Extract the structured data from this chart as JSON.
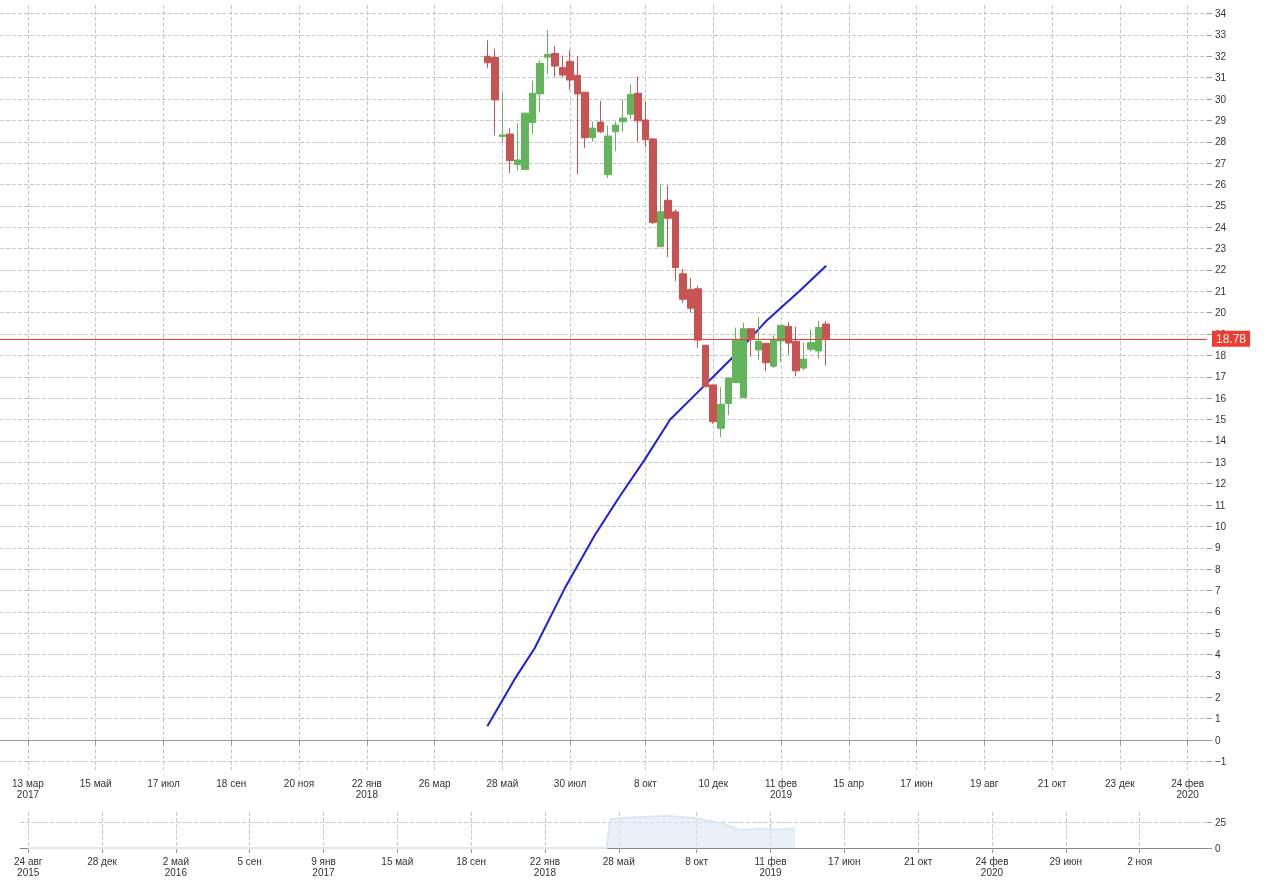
{
  "chart_data": [
    {
      "type": "candlestick",
      "colors": [
        "#c85353",
        "#c85353",
        "#62b55b",
        "#c85353",
        "#62b55b",
        "#62b55b",
        "#62b55b",
        "#62b55b",
        "#62b55b",
        "#c85353",
        "#c85353",
        "#c85353",
        "#c85353",
        "#c85353",
        "#62b55b",
        "#c85353",
        "#62b55b",
        "#62b55b",
        "#62b55b",
        "#62b55b",
        "#c85353",
        "#c85353",
        "#c85353",
        "#62b55b",
        "#c85353",
        "#c85353",
        "#c85353",
        "#c85353",
        "#c85353",
        "#c85353",
        "#c85353",
        "#62b55b",
        "#62b55b",
        "#62b55b",
        "#62b55b",
        "#c85353",
        "#62b55b",
        "#c85353",
        "#62b55b",
        "#62b55b",
        "#c85353",
        "#c85353",
        "#62b55b",
        "#62b55b",
        "#62b55b",
        "#c85353"
      ],
      "grid": true,
      "x": [
        "2018-05-14",
        "2018-05-21",
        "2018-05-28",
        "2018-06-04",
        "2018-06-11",
        "2018-06-18",
        "2018-06-25",
        "2018-07-02",
        "2018-07-09",
        "2018-07-16",
        "2018-07-23",
        "2018-07-30",
        "2018-08-06",
        "2018-08-13",
        "2018-08-20",
        "2018-08-27",
        "2018-09-03",
        "2018-09-10",
        "2018-09-17",
        "2018-09-24",
        "2018-10-01",
        "2018-10-08",
        "2018-10-15",
        "2018-10-22",
        "2018-10-29",
        "2018-11-05",
        "2018-11-12",
        "2018-11-19",
        "2018-11-26",
        "2018-12-03",
        "2018-12-10",
        "2018-12-17",
        "2018-12-24",
        "2018-12-31",
        "2019-01-07",
        "2019-01-14",
        "2019-01-21",
        "2019-01-28",
        "2019-02-04",
        "2019-02-11",
        "2019-02-18",
        "2019-02-25",
        "2019-03-04",
        "2019-03-11",
        "2019-03-18",
        "2019-03-25"
      ],
      "ohlc": [
        [
          32.0,
          32.75,
          31.45,
          31.7
        ],
        [
          31.95,
          32.35,
          28.3,
          29.96
        ],
        [
          28.25,
          30.3,
          27.95,
          28.32
        ],
        [
          28.36,
          28.63,
          26.53,
          27.12
        ],
        [
          26.94,
          28.86,
          26.66,
          27.15
        ],
        [
          26.7,
          29.35,
          26.7,
          29.34
        ],
        [
          28.9,
          30.86,
          28.35,
          30.27
        ],
        [
          30.24,
          31.82,
          29.37,
          31.67
        ],
        [
          31.96,
          33.23,
          31.15,
          32.09
        ],
        [
          32.13,
          32.49,
          31.05,
          31.54
        ],
        [
          31.48,
          32.04,
          31.0,
          31.12
        ],
        [
          31.76,
          32.29,
          30.44,
          30.89
        ],
        [
          31.11,
          31.98,
          26.49,
          30.24
        ],
        [
          30.32,
          30.32,
          27.7,
          28.19
        ],
        [
          28.19,
          28.95,
          28.0,
          28.64
        ],
        [
          28.92,
          29.91,
          28.4,
          28.47
        ],
        [
          26.47,
          28.75,
          26.3,
          28.27
        ],
        [
          28.47,
          28.94,
          27.56,
          28.78
        ],
        [
          28.94,
          29.98,
          28.47,
          29.11
        ],
        [
          29.29,
          30.67,
          29.06,
          30.22
        ],
        [
          30.27,
          31.05,
          28.0,
          28.98
        ],
        [
          29.02,
          29.9,
          27.74,
          28.1
        ],
        [
          28.13,
          28.17,
          24.14,
          24.22
        ],
        [
          23.09,
          26.0,
          23.09,
          24.73
        ],
        [
          25.26,
          25.95,
          22.6,
          24.42
        ],
        [
          24.72,
          24.84,
          21.48,
          22.11
        ],
        [
          21.82,
          22.05,
          20.46,
          20.63
        ],
        [
          21.08,
          21.63,
          20.01,
          20.21
        ],
        [
          21.12,
          21.25,
          18.34,
          18.72
        ],
        [
          18.48,
          18.48,
          16.5,
          16.54
        ],
        [
          16.62,
          16.62,
          14.8,
          14.9
        ],
        [
          14.59,
          16.51,
          14.19,
          15.72
        ],
        [
          15.75,
          16.94,
          15.21,
          16.94
        ],
        [
          16.73,
          19.3,
          16.73,
          18.76
        ],
        [
          16.03,
          19.53,
          16.03,
          19.25
        ],
        [
          19.25,
          19.25,
          17.95,
          18.8
        ],
        [
          18.26,
          19.78,
          17.8,
          18.66
        ],
        [
          18.57,
          18.57,
          17.26,
          17.66
        ],
        [
          17.5,
          18.96,
          17.41,
          18.76
        ],
        [
          18.68,
          19.41,
          17.7,
          19.41
        ],
        [
          19.36,
          19.56,
          18.05,
          18.58
        ],
        [
          18.66,
          19.34,
          17.02,
          17.28
        ],
        [
          17.41,
          18.6,
          17.3,
          17.83
        ],
        [
          18.29,
          19.22,
          18.18,
          18.6
        ],
        [
          18.21,
          19.62,
          17.84,
          19.31
        ],
        [
          19.47,
          19.62,
          17.53,
          18.78
        ]
      ],
      "series": [
        {
          "type": "line",
          "color": "#1f1fe0",
          "x": [
            "2018-05-14",
            "2018-06-09",
            "2018-06-27",
            "2018-07-25",
            "2018-08-22",
            "2018-09-14",
            "2018-10-07",
            "2018-10-31",
            "2018-11-28",
            "2018-12-28",
            "2019-01-28",
            "2019-02-28",
            "2019-03-25"
          ],
          "values": [
            0.65,
            2.9,
            4.3,
            7.1,
            9.6,
            11.4,
            13.1,
            15.0,
            16.4,
            17.9,
            19.6,
            21.0,
            22.2
          ]
        }
      ],
      "ref_lines": [
        {
          "axis": "y",
          "value": 0,
          "color": "#999999"
        },
        {
          "axis": "y",
          "value": 18.78,
          "label": "18.78",
          "color": "#f03c2e"
        }
      ],
      "xlim": [
        "2017-02-15",
        "2020-03-13"
      ],
      "xticks": [
        {
          "value": "2017-03-13",
          "label": "13 мар\n2017"
        },
        {
          "value": "2017-05-15",
          "label": "15 май"
        },
        {
          "value": "2017-07-17",
          "label": "17 июл"
        },
        {
          "value": "2017-09-18",
          "label": "18 сен"
        },
        {
          "value": "2017-11-20",
          "label": "20 ноя"
        },
        {
          "value": "2018-01-22",
          "label": "22 янв\n2018"
        },
        {
          "value": "2018-03-26",
          "label": "26 мар"
        },
        {
          "value": "2018-05-28",
          "label": "28 май"
        },
        {
          "value": "2018-07-30",
          "label": "30 июл"
        },
        {
          "value": "2018-10-08",
          "label": "8 окт"
        },
        {
          "value": "2018-12-10",
          "label": "10 дек"
        },
        {
          "value": "2019-02-11",
          "label": "11 фев\n2019"
        },
        {
          "value": "2019-04-15",
          "label": "15 апр"
        },
        {
          "value": "2019-06-17",
          "label": "17 июн"
        },
        {
          "value": "2019-08-19",
          "label": "19 авг"
        },
        {
          "value": "2019-10-21",
          "label": "21 окт"
        },
        {
          "value": "2019-12-23",
          "label": "23 дек"
        },
        {
          "value": "2020-02-24",
          "label": "24 фев\n2020"
        }
      ],
      "ylim": [
        -1.4,
        34.4
      ],
      "yticks": [
        {
          "value": -1,
          "label": "−1"
        },
        0,
        1,
        2,
        3,
        4,
        5,
        6,
        7,
        8,
        9,
        10,
        11,
        12,
        13,
        14,
        15,
        16,
        17,
        18,
        19,
        20,
        21,
        22,
        23,
        24,
        25,
        26,
        27,
        28,
        29,
        30,
        31,
        32,
        33,
        34
      ]
    },
    {
      "type": "area",
      "color": "#dce8f5",
      "grid": true,
      "x": [
        "2015-08-24",
        "2018-05-07",
        "2018-05-14",
        "2018-06-25",
        "2018-08-20",
        "2018-10-08",
        "2018-11-19",
        "2018-12-24",
        "2019-01-21",
        "2019-02-25",
        "2019-03-25"
      ],
      "values": [
        0,
        0,
        28,
        30,
        31,
        29,
        24,
        17,
        19,
        18,
        19
      ],
      "xlim": [
        "2015-08-10",
        "2021-02-25"
      ],
      "xticks": [
        {
          "value": "2015-08-24",
          "label": "24 авг\n2015"
        },
        {
          "value": "2015-12-28",
          "label": "28 дек"
        },
        {
          "value": "2016-05-02",
          "label": "2 май\n2016"
        },
        {
          "value": "2016-09-05",
          "label": "5 сен"
        },
        {
          "value": "2017-01-09",
          "label": "9 янв\n2017"
        },
        {
          "value": "2017-05-15",
          "label": "15 май"
        },
        {
          "value": "2017-09-18",
          "label": "18 сен"
        },
        {
          "value": "2018-01-22",
          "label": "22 янв\n2018"
        },
        {
          "value": "2018-05-28",
          "label": "28 май"
        },
        {
          "value": "2018-10-08",
          "label": "8 окт"
        },
        {
          "value": "2019-02-11",
          "label": "11 фев\n2019"
        },
        {
          "value": "2019-06-17",
          "label": "17 июн"
        },
        {
          "value": "2019-10-21",
          "label": "21 окт"
        },
        {
          "value": "2020-02-24",
          "label": "24 фев\n2020"
        },
        {
          "value": "2020-06-29",
          "label": "29 июн"
        },
        {
          "value": "2020-11-02",
          "label": "2 ноя"
        }
      ],
      "ylim": [
        0,
        35
      ],
      "yticks": [
        0,
        25
      ]
    }
  ]
}
